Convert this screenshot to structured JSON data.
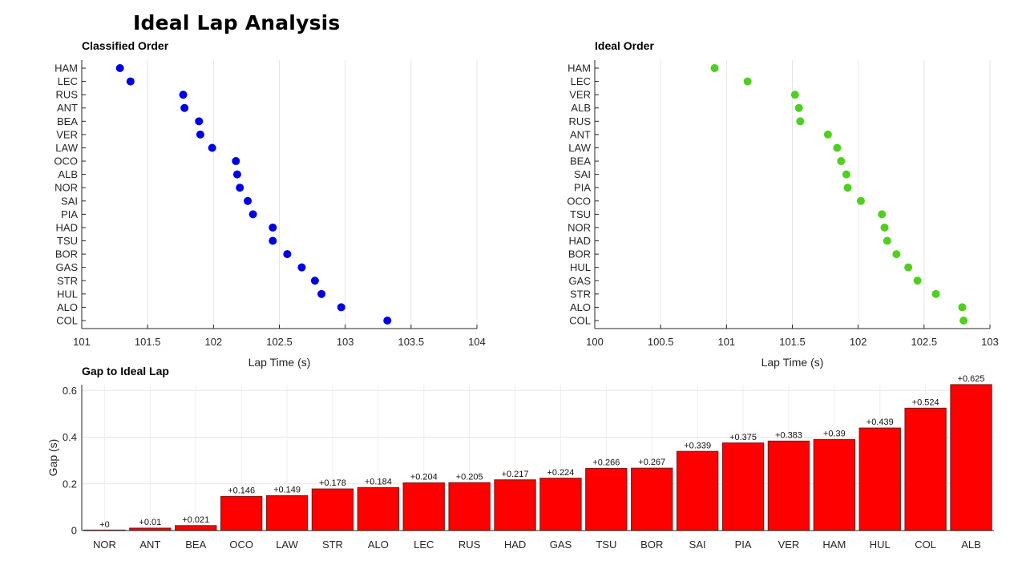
{
  "title": "Ideal Lap Analysis",
  "chart_data": [
    {
      "type": "scatter",
      "title": "Classified Order",
      "xlabel": "Lap Time (s)",
      "ylabel": "",
      "xlim": [
        101,
        104
      ],
      "xticks": [
        "101",
        "101.5",
        "102",
        "102.5",
        "103",
        "103.5",
        "104"
      ],
      "grid": true,
      "color": "#0000e6",
      "series": [
        {
          "categories": [
            "HAM",
            "LEC",
            "RUS",
            "ANT",
            "BEA",
            "VER",
            "LAW",
            "OCO",
            "ALB",
            "NOR",
            "SAI",
            "PIA",
            "HAD",
            "TSU",
            "BOR",
            "GAS",
            "STR",
            "HUL",
            "ALO",
            "COL"
          ],
          "values": [
            101.29,
            101.37,
            101.77,
            101.78,
            101.89,
            101.9,
            101.99,
            102.17,
            102.18,
            102.2,
            102.26,
            102.3,
            102.45,
            102.45,
            102.56,
            102.67,
            102.77,
            102.82,
            102.97,
            103.32
          ]
        }
      ]
    },
    {
      "type": "scatter",
      "title": "Ideal Order",
      "xlabel": "Lap Time (s)",
      "ylabel": "",
      "xlim": [
        100,
        103
      ],
      "xticks": [
        "100",
        "100.5",
        "101",
        "101.5",
        "102",
        "102.5",
        "103"
      ],
      "grid": true,
      "color": "#4fd01f",
      "series": [
        {
          "categories": [
            "HAM",
            "LEC",
            "VER",
            "ALB",
            "RUS",
            "ANT",
            "LAW",
            "BEA",
            "SAI",
            "PIA",
            "OCO",
            "TSU",
            "NOR",
            "HAD",
            "BOR",
            "HUL",
            "GAS",
            "STR",
            "ALO",
            "COL"
          ],
          "values": [
            100.91,
            101.16,
            101.52,
            101.55,
            101.56,
            101.77,
            101.84,
            101.87,
            101.91,
            101.92,
            102.02,
            102.18,
            102.2,
            102.22,
            102.29,
            102.38,
            102.45,
            102.59,
            102.79,
            102.8
          ]
        }
      ]
    },
    {
      "type": "bar",
      "title": "Gap to Ideal Lap",
      "xlabel": "",
      "ylabel": "Gap (s)",
      "ylim": [
        0,
        0.625
      ],
      "yticks": [
        "0",
        "0.2",
        "0.4",
        "0.6"
      ],
      "grid": true,
      "color": "#ff0000",
      "categories": [
        "NOR",
        "ANT",
        "BEA",
        "OCO",
        "LAW",
        "STR",
        "ALO",
        "LEC",
        "RUS",
        "HAD",
        "GAS",
        "TSU",
        "BOR",
        "SAI",
        "PIA",
        "VER",
        "HAM",
        "HUL",
        "COL",
        "ALB"
      ],
      "values": [
        0,
        0.01,
        0.021,
        0.146,
        0.149,
        0.178,
        0.184,
        0.204,
        0.205,
        0.217,
        0.224,
        0.266,
        0.267,
        0.339,
        0.375,
        0.383,
        0.39,
        0.439,
        0.524,
        0.625
      ],
      "data_labels": [
        "+0",
        "+0.01",
        "+0.021",
        "+0.146",
        "+0.149",
        "+0.178",
        "+0.184",
        "+0.204",
        "+0.205",
        "+0.217",
        "+0.224",
        "+0.266",
        "+0.267",
        "+0.339",
        "+0.375",
        "+0.383",
        "+0.39",
        "+0.439",
        "+0.524",
        "+0.625"
      ]
    }
  ]
}
